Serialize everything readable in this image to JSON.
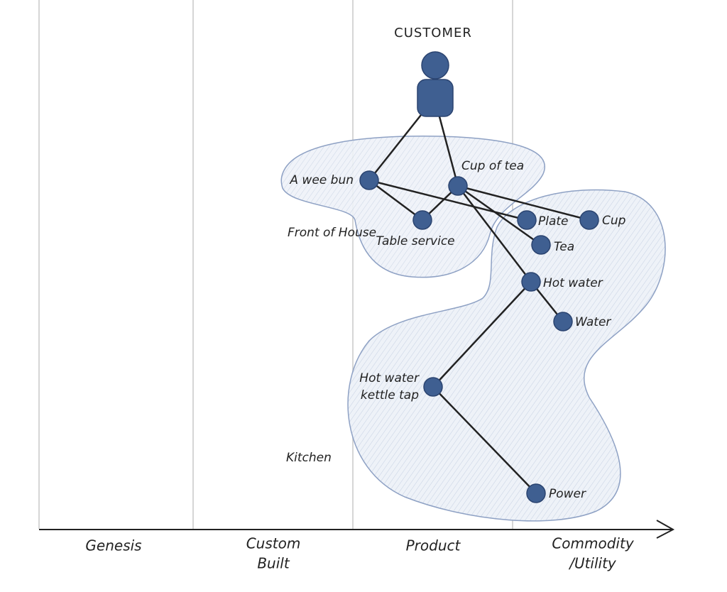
{
  "title": "CUSTOMER",
  "stages": [
    [
      "Genesis"
    ],
    [
      "Custom",
      "Built"
    ],
    [
      "Product"
    ],
    [
      "Commodity",
      "/Utility"
    ]
  ],
  "groups": [
    "Front of House",
    "Kitchen"
  ],
  "nodes": [
    [
      "A wee bun"
    ],
    [
      "Cup of tea"
    ],
    [
      "Table service"
    ],
    [
      "Plate"
    ],
    [
      "Cup"
    ],
    [
      "Tea"
    ],
    [
      "Hot water"
    ],
    [
      "Water"
    ],
    [
      "Hot water",
      "kettle tap"
    ],
    [
      "Power"
    ]
  ]
}
